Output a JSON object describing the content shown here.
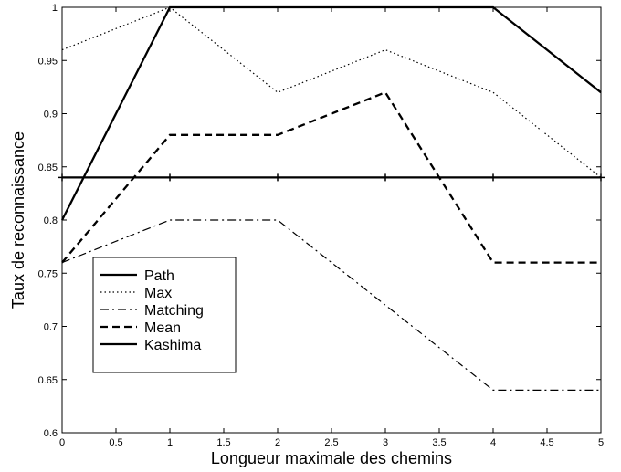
{
  "chart_data": {
    "type": "line",
    "title": "",
    "xlabel": "Longueur maximale des chemins",
    "ylabel": "Taux de reconnaissance",
    "xlim": [
      0,
      5
    ],
    "ylim": [
      0.6,
      1
    ],
    "x_ticks": [
      0,
      0.5,
      1,
      1.5,
      2,
      2.5,
      3,
      3.5,
      4,
      4.5,
      5
    ],
    "x_tick_labels": [
      "0",
      "0.5",
      "1",
      "1.5",
      "2",
      "2.5",
      "3",
      "3.5",
      "4",
      "4.5",
      "5"
    ],
    "y_ticks": [
      0.6,
      0.65,
      0.7,
      0.75,
      0.8,
      0.85,
      0.9,
      0.95,
      1
    ],
    "y_tick_labels": [
      "0.6",
      "0.65",
      "0.7",
      "0.75",
      "0.8",
      "0.85",
      "0.9",
      "0.95",
      "1"
    ],
    "grid": false,
    "legend_position": "bottom-left",
    "x": [
      0,
      1,
      2,
      3,
      4,
      5
    ],
    "series": [
      {
        "name": "Path",
        "style": "solid",
        "color": "#000000",
        "values": [
          0.8,
          1.0,
          1.0,
          1.0,
          1.0,
          0.92
        ]
      },
      {
        "name": "Max",
        "style": "dotted",
        "color": "#000000",
        "values": [
          0.96,
          1.0,
          0.92,
          0.96,
          0.92,
          0.84
        ]
      },
      {
        "name": "Matching",
        "style": "dashdot",
        "color": "#000000",
        "values": [
          0.76,
          0.8,
          0.8,
          0.72,
          0.64,
          0.64
        ]
      },
      {
        "name": "Mean",
        "style": "dashed",
        "color": "#000000",
        "values": [
          0.76,
          0.88,
          0.88,
          0.92,
          0.76,
          0.76
        ]
      },
      {
        "name": "Kashima",
        "style": "solid",
        "color": "#000000",
        "markers": "plus",
        "values": [
          0.84,
          0.84,
          0.84,
          0.84,
          0.84,
          0.84
        ]
      }
    ]
  }
}
